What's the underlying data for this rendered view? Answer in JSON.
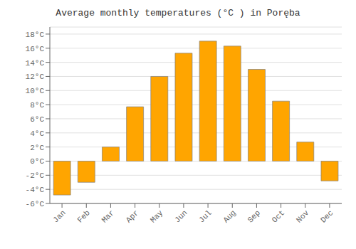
{
  "chart_data": {
    "type": "bar",
    "title": "Average monthly temperatures (°C ) in Poręba",
    "categories": [
      "Jan",
      "Feb",
      "Mar",
      "Apr",
      "May",
      "Jun",
      "Jul",
      "Aug",
      "Sep",
      "Oct",
      "Nov",
      "Dec"
    ],
    "values": [
      -4.8,
      -3.0,
      2.0,
      7.7,
      12.0,
      15.3,
      17.0,
      16.3,
      13.0,
      8.5,
      2.7,
      -2.8
    ],
    "color": "#FFA500",
    "ylim": [
      -6,
      19
    ],
    "yticks": [
      {
        "value": -6,
        "label": "-6°C"
      },
      {
        "value": -4,
        "label": "-4°C"
      },
      {
        "value": -2,
        "label": "-2°C"
      },
      {
        "value": 0,
        "label": "0°C"
      },
      {
        "value": 2,
        "label": "2°C"
      },
      {
        "value": 4,
        "label": "4°C"
      },
      {
        "value": 6,
        "label": "6°C"
      },
      {
        "value": 8,
        "label": "8°C"
      },
      {
        "value": 10,
        "label": "10°C"
      },
      {
        "value": 12,
        "label": "12°C"
      },
      {
        "value": 14,
        "label": "14°C"
      },
      {
        "value": 16,
        "label": "16°C"
      },
      {
        "value": 18,
        "label": "18°C"
      }
    ],
    "grid": true
  }
}
